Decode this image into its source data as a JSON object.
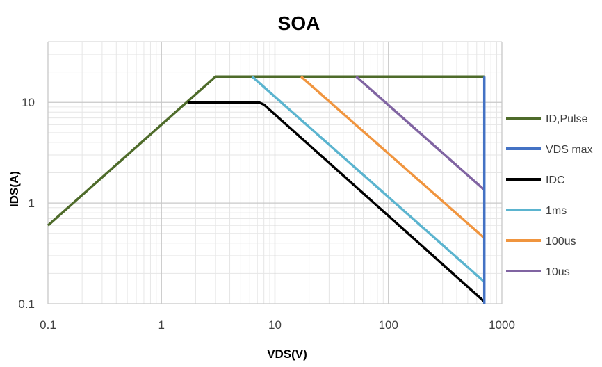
{
  "chart_data": {
    "type": "line",
    "title": "SOA",
    "xlabel": "VDS(V)",
    "ylabel": "IDS(A)",
    "xscale": "log",
    "yscale": "log",
    "xlim": [
      0.1,
      1000
    ],
    "ylim": [
      0.1,
      40
    ],
    "xticks": [
      {
        "value": 0.1,
        "label": "0.1"
      },
      {
        "value": 1,
        "label": "1"
      },
      {
        "value": 10,
        "label": "10"
      },
      {
        "value": 100,
        "label": "100"
      },
      {
        "value": 1000,
        "label": "1000"
      }
    ],
    "yticks": [
      {
        "value": 0.1,
        "label": "0.1"
      },
      {
        "value": 1,
        "label": "1"
      },
      {
        "value": 10,
        "label": "10"
      }
    ],
    "grid": true,
    "legend_position": "right",
    "series": [
      {
        "name": "ID,Pulse",
        "color": "#4e6b2a",
        "points": [
          [
            0.1,
            0.6
          ],
          [
            3,
            18
          ],
          [
            700,
            18
          ]
        ]
      },
      {
        "name": "VDS max",
        "color": "#4472c4",
        "points": [
          [
            700,
            18
          ],
          [
            700,
            0.1
          ]
        ]
      },
      {
        "name": "IDC",
        "color": "#000000",
        "points": [
          [
            1.7,
            10
          ],
          [
            6.5,
            10
          ],
          [
            7.2,
            10
          ],
          [
            8,
            9.5
          ],
          [
            700,
            0.105
          ]
        ]
      },
      {
        "name": "1ms",
        "color": "#5bb4cf",
        "points": [
          [
            6.3,
            18
          ],
          [
            700,
            0.165
          ]
        ]
      },
      {
        "name": "100us",
        "color": "#f0953f",
        "points": [
          [
            17,
            18
          ],
          [
            700,
            0.45
          ]
        ]
      },
      {
        "name": "10us",
        "color": "#8064a2",
        "points": [
          [
            52,
            18
          ],
          [
            700,
            1.35
          ]
        ]
      }
    ]
  }
}
